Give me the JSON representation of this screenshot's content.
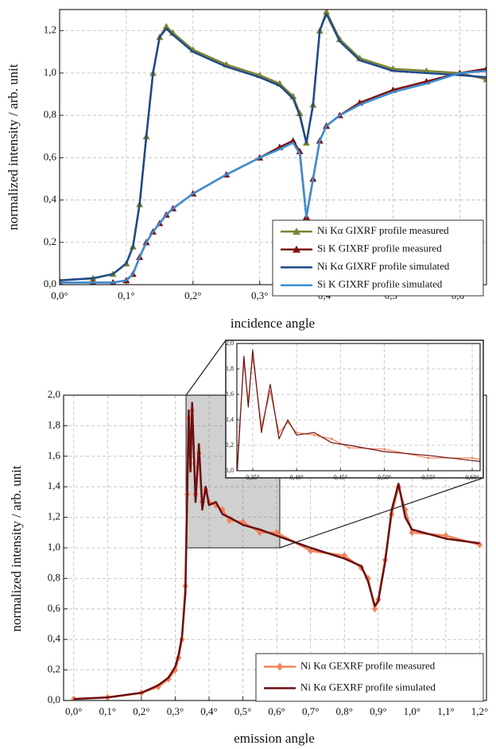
{
  "chart_data": [
    {
      "type": "line",
      "x_label": "incidence angle",
      "y_label": "normalized intensity / arb. unit",
      "grid": true,
      "legend": "lower right",
      "xlim": [
        0,
        0.64
      ],
      "ylim": [
        0,
        1.3
      ],
      "xticks": [
        {
          "value": 0,
          "label": "0,0°"
        },
        {
          "value": 0.1,
          "label": "0,1°"
        },
        {
          "value": 0.2,
          "label": "0,2°"
        },
        {
          "value": 0.3,
          "label": "0,3°"
        },
        {
          "value": 0.4,
          "label": "0,4°"
        },
        {
          "value": 0.5,
          "label": "0,5°"
        },
        {
          "value": 0.6,
          "label": "0,6°"
        }
      ],
      "yticks": [
        {
          "value": 0,
          "label": "0,0"
        },
        {
          "value": 0.2,
          "label": "0,2"
        },
        {
          "value": 0.4,
          "label": "0,4"
        },
        {
          "value": 0.6,
          "label": "0,6"
        },
        {
          "value": 0.8,
          "label": "0,8"
        },
        {
          "value": 1.0,
          "label": "1,0"
        },
        {
          "value": 1.2,
          "label": "1,2"
        }
      ],
      "x": [
        0,
        0.05,
        0.08,
        0.1,
        0.11,
        0.12,
        0.13,
        0.14,
        0.15,
        0.16,
        0.17,
        0.2,
        0.25,
        0.3,
        0.33,
        0.35,
        0.36,
        0.37,
        0.38,
        0.39,
        0.4,
        0.42,
        0.45,
        0.5,
        0.55,
        0.6,
        0.64
      ],
      "series": [
        {
          "name": "Ni Kα GIXRF profile measured",
          "color": "#7f8430",
          "marker": "triangle",
          "values": [
            0.02,
            0.03,
            0.05,
            0.1,
            0.18,
            0.38,
            0.7,
            1.0,
            1.17,
            1.22,
            1.19,
            1.11,
            1.04,
            0.99,
            0.95,
            0.89,
            0.81,
            0.67,
            0.85,
            1.2,
            1.29,
            1.16,
            1.07,
            1.02,
            1.01,
            1.0,
            0.97
          ]
        },
        {
          "name": "Si K GIXRF profile measured",
          "color": "#7a1414",
          "marker": "triangle",
          "values": [
            0.01,
            0.01,
            0.01,
            0.02,
            0.05,
            0.13,
            0.2,
            0.25,
            0.29,
            0.33,
            0.36,
            0.43,
            0.52,
            0.6,
            0.65,
            0.68,
            0.63,
            0.32,
            0.5,
            0.68,
            0.75,
            0.8,
            0.86,
            0.92,
            0.96,
            1.0,
            1.02
          ]
        },
        {
          "name": "Ni Kα GIXRF profile simulated",
          "color": "#1f4a8a",
          "values": [
            0.02,
            0.03,
            0.05,
            0.1,
            0.18,
            0.38,
            0.7,
            1.0,
            1.17,
            1.21,
            1.18,
            1.1,
            1.03,
            0.98,
            0.94,
            0.88,
            0.8,
            0.67,
            0.85,
            1.2,
            1.28,
            1.15,
            1.06,
            1.01,
            1.0,
            0.99,
            0.98
          ]
        },
        {
          "name": "Si K GIXRF profile simulated",
          "color": "#3b8fd4",
          "values": [
            0.01,
            0.01,
            0.01,
            0.02,
            0.05,
            0.13,
            0.2,
            0.25,
            0.29,
            0.33,
            0.36,
            0.43,
            0.52,
            0.6,
            0.64,
            0.67,
            0.62,
            0.32,
            0.5,
            0.68,
            0.75,
            0.8,
            0.85,
            0.91,
            0.95,
            1.0,
            1.01
          ]
        }
      ]
    },
    {
      "type": "line",
      "x_label": "emission angle",
      "y_label": "normalized intensity / arb. unit",
      "grid": true,
      "legend": "lower right",
      "xlim": [
        -0.03,
        1.22
      ],
      "ylim": [
        0,
        2.0
      ],
      "xticks": [
        {
          "value": 0,
          "label": "0,0°"
        },
        {
          "value": 0.1,
          "label": "0,1°"
        },
        {
          "value": 0.2,
          "label": "0,2°"
        },
        {
          "value": 0.3,
          "label": "0,3°"
        },
        {
          "value": 0.4,
          "label": "0,4°"
        },
        {
          "value": 0.5,
          "label": "0,5°"
        },
        {
          "value": 0.6,
          "label": "0,6°"
        },
        {
          "value": 0.7,
          "label": "0,7°"
        },
        {
          "value": 0.8,
          "label": "0,8°"
        },
        {
          "value": 0.9,
          "label": "0,9°"
        },
        {
          "value": 1.0,
          "label": "1,0°"
        },
        {
          "value": 1.1,
          "label": "1,1°"
        },
        {
          "value": 1.2,
          "label": "1,2°"
        }
      ],
      "yticks": [
        {
          "value": 0,
          "label": "0,0"
        },
        {
          "value": 0.2,
          "label": "0,2"
        },
        {
          "value": 0.4,
          "label": "0,4"
        },
        {
          "value": 0.6,
          "label": "0,6"
        },
        {
          "value": 0.8,
          "label": "0,8"
        },
        {
          "value": 1.0,
          "label": "1,0"
        },
        {
          "value": 1.2,
          "label": "1,2"
        },
        {
          "value": 1.4,
          "label": "1,4"
        },
        {
          "value": 1.6,
          "label": "1,6"
        },
        {
          "value": 1.8,
          "label": "1,8"
        },
        {
          "value": 2.0,
          "label": "2,0"
        }
      ],
      "x": [
        0,
        0.1,
        0.2,
        0.25,
        0.28,
        0.3,
        0.31,
        0.32,
        0.33,
        0.335,
        0.34,
        0.345,
        0.35,
        0.36,
        0.37,
        0.38,
        0.39,
        0.4,
        0.42,
        0.44,
        0.46,
        0.5,
        0.55,
        0.6,
        0.7,
        0.8,
        0.85,
        0.87,
        0.89,
        0.9,
        0.92,
        0.94,
        0.96,
        0.98,
        1.0,
        1.1,
        1.2
      ],
      "series": [
        {
          "name": "Ni Kα GEXRF profile measured",
          "color": "#f0845a",
          "marker": "diamond",
          "values": [
            0.01,
            0.02,
            0.05,
            0.09,
            0.14,
            0.2,
            0.28,
            0.4,
            0.75,
            1.35,
            1.85,
            1.55,
            1.9,
            1.35,
            1.62,
            1.3,
            1.38,
            1.3,
            1.28,
            1.25,
            1.18,
            1.17,
            1.1,
            1.1,
            0.98,
            0.95,
            0.87,
            0.8,
            0.6,
            0.66,
            0.92,
            1.22,
            1.4,
            1.25,
            1.1,
            1.08,
            1.02
          ]
        },
        {
          "name": "Ni Kα GEXRF profile simulated",
          "color": "#6b0f12",
          "values": [
            0.01,
            0.02,
            0.05,
            0.1,
            0.15,
            0.22,
            0.3,
            0.42,
            0.7,
            1.3,
            1.9,
            1.5,
            1.95,
            1.3,
            1.68,
            1.25,
            1.4,
            1.28,
            1.3,
            1.22,
            1.2,
            1.15,
            1.12,
            1.08,
            1.0,
            0.93,
            0.88,
            0.78,
            0.62,
            0.65,
            0.9,
            1.25,
            1.42,
            1.2,
            1.12,
            1.06,
            1.03
          ]
        }
      ],
      "inset": {
        "xlim": [
          0.332,
          0.609
        ],
        "ylim": [
          1.0,
          2.0
        ],
        "xticks": [
          {
            "value": 0.35,
            "label": "0,35°"
          },
          {
            "value": 0.4,
            "label": "0,40°"
          },
          {
            "value": 0.45,
            "label": "0,45°"
          },
          {
            "value": 0.5,
            "label": "0,50°"
          },
          {
            "value": 0.55,
            "label": "0,55°"
          },
          {
            "value": 0.6,
            "label": "0,60°"
          }
        ],
        "yticks": [
          {
            "value": 1.0,
            "label": "1,0"
          },
          {
            "value": 1.2,
            "label": "1,2"
          },
          {
            "value": 1.4,
            "label": "1,4"
          },
          {
            "value": 1.6,
            "label": "1,6"
          },
          {
            "value": 1.8,
            "label": "1,8"
          },
          {
            "value": 2.0,
            "label": "2,0"
          }
        ]
      }
    }
  ]
}
